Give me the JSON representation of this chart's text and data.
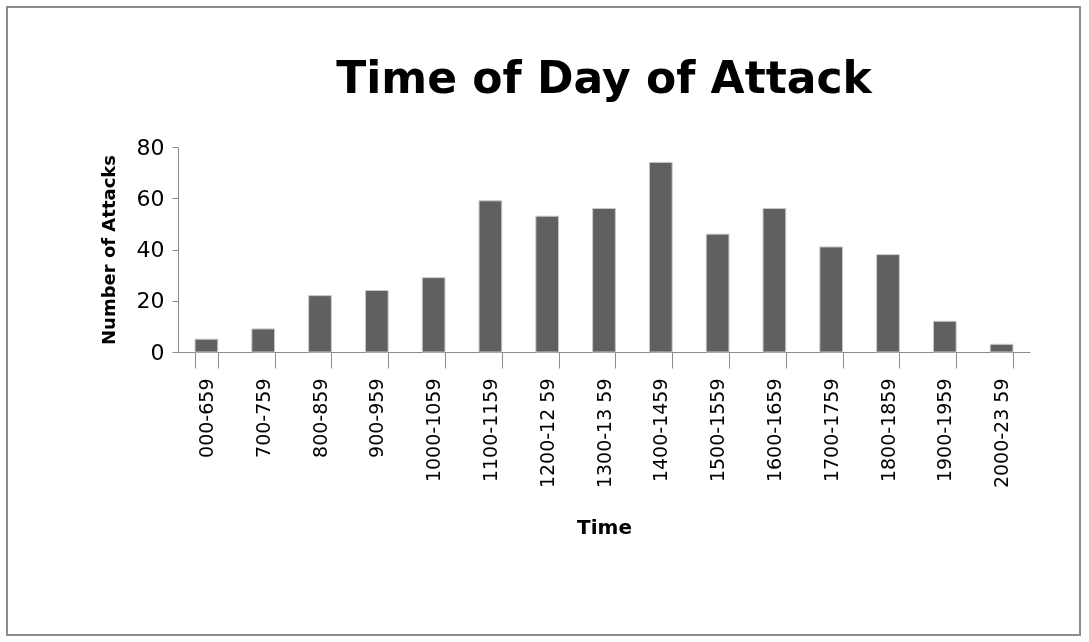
{
  "chart_data": {
    "type": "bar",
    "title": "Time of Day of Attack",
    "xlabel": "Time",
    "ylabel": "Number of Attacks",
    "categories": [
      "000-659",
      "700-759",
      "800-859",
      "900-959",
      "1000-1059",
      "1100-1159",
      "1200-12 59",
      "1300-13 59",
      "1400-1459",
      "1500-1559",
      "1600-1659",
      "1700-1759",
      "1800-1859",
      "1900-1959",
      "2000-23 59"
    ],
    "values": [
      5,
      9,
      22,
      24,
      29,
      59,
      53,
      56,
      74,
      46,
      56,
      41,
      38,
      12,
      3
    ],
    "color": "#606060",
    "ylim": [
      0,
      80
    ],
    "yticks": [
      0,
      20,
      40,
      60,
      80
    ],
    "grid": false
  }
}
